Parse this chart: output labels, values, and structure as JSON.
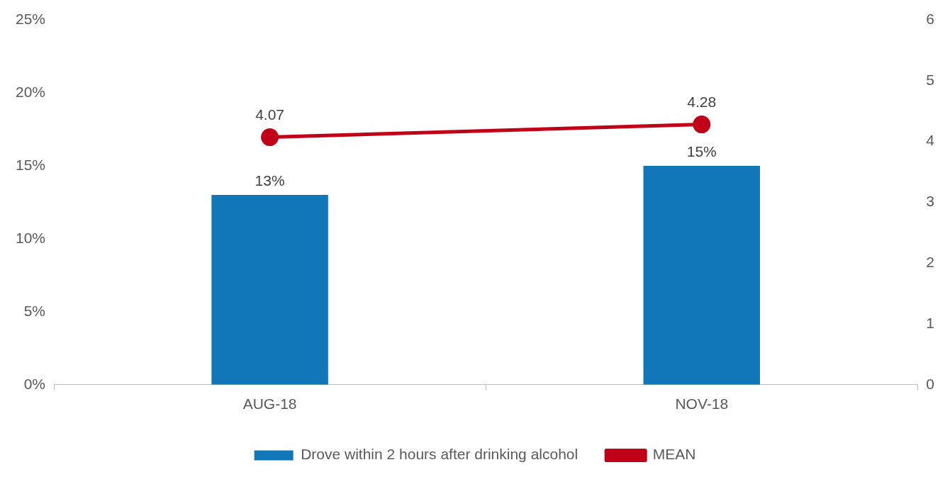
{
  "chart_data": {
    "type": "bar",
    "categories": [
      "AUG-18",
      "NOV-18"
    ],
    "series": [
      {
        "name": "Drove within 2 hours after drinking alcohol",
        "color": "#1177b8",
        "values": [
          13,
          15
        ],
        "value_labels": [
          "13%",
          "15%"
        ]
      },
      {
        "name": "MEAN",
        "type": "line",
        "axis": "y2",
        "color": "#c00018",
        "values": [
          4.07,
          4.28
        ],
        "value_labels": [
          "4.07",
          "4.28"
        ],
        "marker": "circle"
      }
    ],
    "ylim": [
      0,
      25
    ],
    "yticks": [
      {
        "value": 0,
        "label": "0%"
      },
      {
        "value": 5,
        "label": "5%"
      },
      {
        "value": 10,
        "label": "10%"
      },
      {
        "value": 15,
        "label": "15%"
      },
      {
        "value": 20,
        "label": "20%"
      },
      {
        "value": 25,
        "label": "25%"
      }
    ],
    "y2lim": [
      0,
      6
    ],
    "y2ticks": [
      0,
      1,
      2,
      3,
      4,
      5,
      6
    ],
    "grid": false,
    "legend": "bottom"
  }
}
